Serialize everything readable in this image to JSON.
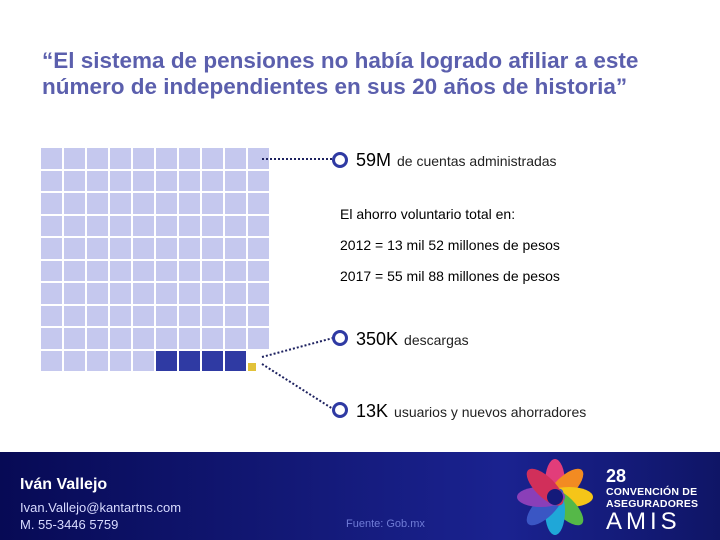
{
  "title": "“El sistema de pensiones no había logrado afiliar a este número de independientes en sus 20 años de historia”",
  "stats": {
    "accounts": {
      "value": "59M",
      "label": "de cuentas administradas"
    },
    "downloads": {
      "value": "350K",
      "label": "descargas"
    },
    "users": {
      "value": "13K",
      "label": "usuarios y nuevos ahorradores"
    }
  },
  "savings": {
    "heading": "El ahorro voluntario total en:",
    "line_2012": "2012 = 13 mil 52 millones de pesos",
    "line_2017": "2017 = 55 mil 88 millones de pesos"
  },
  "footer": {
    "name": "Iván Vallejo",
    "email": "Ivan.Vallejo@kantartns.com",
    "phone": "M. 55-3446 5759",
    "source": "Fuente: Gob.mx"
  },
  "logo": {
    "number": "28",
    "line1": "CONVENCIÓN DE",
    "line2": "ASEGURADORES",
    "line3": "AMIS"
  },
  "colors": {
    "title": "#5b5fad",
    "grid_light": "#c5c8ee",
    "grid_dark": "#2f3aa3",
    "grid_highlight": "#e2c23a",
    "marker_ring": "#2f3aa3",
    "footer_bg": "#141a7a"
  },
  "icons": {
    "marker": "ring-marker-icon",
    "logo": "flower-logo-icon"
  }
}
